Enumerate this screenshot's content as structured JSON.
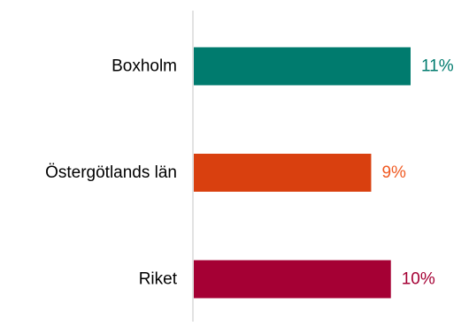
{
  "chart_data": {
    "type": "bar",
    "orientation": "horizontal",
    "categories": [
      "Boxholm",
      "Östergötlands län",
      "Riket"
    ],
    "values": [
      11,
      9,
      10
    ],
    "value_labels": [
      "11%",
      "9%",
      "10%"
    ],
    "colors": [
      "#007B6E",
      "#D9400F",
      "#A50034"
    ],
    "label_colors": [
      "#007B6E",
      "#F05A22",
      "#A50034"
    ],
    "axis_color": "#D9D9D9",
    "category_color": "#000000",
    "grid": false,
    "legend": "none"
  }
}
